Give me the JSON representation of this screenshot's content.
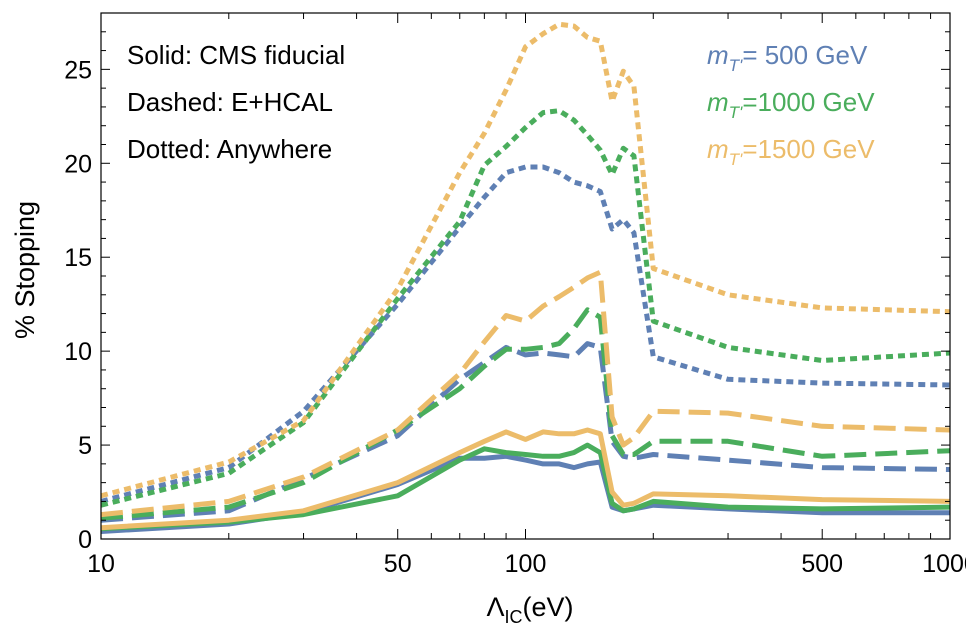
{
  "chart_data": {
    "type": "line",
    "xscale": "log",
    "xlim": [
      10,
      1000
    ],
    "ylim": [
      0,
      28
    ],
    "xticks": [
      10,
      50,
      100,
      500,
      1000
    ],
    "yticks": [
      0,
      5,
      10,
      15,
      20,
      25
    ],
    "xlabel": "Λ",
    "xlabel_sub": "IC",
    "xlabel_unit": "(eV)",
    "ylabel": "% Stopping",
    "grid": false,
    "notes": [
      "Solid: CMS fiducial",
      "Dashed: E+HCAL",
      "Dotted: Anywhere"
    ],
    "legend_placement": "top-right",
    "legend": [
      {
        "prefix": "m",
        "sub": "T'",
        "text": "=  500 GeV",
        "color": "#5f80b4"
      },
      {
        "prefix": "m",
        "sub": "T'",
        "text": "=1000 GeV",
        "color": "#4aad5c"
      },
      {
        "prefix": "m",
        "sub": "T'",
        "text": "=1500 GeV",
        "color": "#ecbc6a"
      }
    ],
    "series": [
      {
        "mass": "500",
        "style": "solid",
        "color": "#5f80b4",
        "x": [
          10,
          20,
          30,
          50,
          70,
          80,
          90,
          100,
          110,
          120,
          130,
          140,
          150,
          160,
          170,
          180,
          200,
          300,
          500,
          1000
        ],
        "y": [
          0.4,
          0.8,
          1.4,
          2.9,
          4.3,
          4.3,
          4.4,
          4.2,
          4.0,
          4.0,
          3.8,
          4.0,
          4.1,
          1.7,
          1.5,
          1.6,
          1.8,
          1.6,
          1.4,
          1.4
        ]
      },
      {
        "mass": "1000",
        "style": "solid",
        "color": "#4aad5c",
        "x": [
          10,
          20,
          30,
          50,
          70,
          80,
          90,
          100,
          110,
          120,
          130,
          140,
          150,
          160,
          170,
          180,
          200,
          300,
          500,
          1000
        ],
        "y": [
          0.55,
          0.9,
          1.3,
          2.3,
          4.2,
          4.8,
          4.6,
          4.5,
          4.4,
          4.4,
          4.6,
          5.0,
          4.6,
          1.9,
          1.5,
          1.6,
          2.0,
          1.7,
          1.6,
          1.7
        ]
      },
      {
        "mass": "1500",
        "style": "solid",
        "color": "#ecbc6a",
        "x": [
          10,
          20,
          30,
          50,
          70,
          80,
          90,
          100,
          110,
          120,
          130,
          140,
          150,
          160,
          170,
          180,
          200,
          300,
          500,
          1000
        ],
        "y": [
          0.6,
          1.0,
          1.5,
          3.0,
          4.6,
          5.2,
          5.7,
          5.3,
          5.7,
          5.6,
          5.6,
          5.8,
          5.6,
          2.5,
          1.8,
          1.9,
          2.4,
          2.3,
          2.1,
          2.0
        ]
      },
      {
        "mass": "500",
        "style": "dashed",
        "color": "#5f80b4",
        "x": [
          10,
          20,
          30,
          50,
          70,
          80,
          90,
          100,
          110,
          120,
          130,
          140,
          150,
          160,
          170,
          180,
          200,
          300,
          500,
          1000
        ],
        "y": [
          1.0,
          1.5,
          3.2,
          5.5,
          8.5,
          9.4,
          10.2,
          9.8,
          9.9,
          9.8,
          9.7,
          10.4,
          10.2,
          5.2,
          4.4,
          4.3,
          4.5,
          4.2,
          3.8,
          3.7
        ]
      },
      {
        "mass": "1000",
        "style": "dashed",
        "color": "#4aad5c",
        "x": [
          10,
          20,
          30,
          50,
          70,
          80,
          90,
          100,
          110,
          120,
          130,
          140,
          150,
          160,
          170,
          180,
          200,
          300,
          500,
          1000
        ],
        "y": [
          1.1,
          1.7,
          3.0,
          5.8,
          8.0,
          9.2,
          10.1,
          10.1,
          10.2,
          10.4,
          11.2,
          12.2,
          11.8,
          5.5,
          4.5,
          4.5,
          5.2,
          5.2,
          4.4,
          4.7
        ]
      },
      {
        "mass": "1500",
        "style": "dashed",
        "color": "#ecbc6a",
        "x": [
          10,
          20,
          30,
          50,
          70,
          80,
          90,
          100,
          110,
          120,
          130,
          140,
          150,
          160,
          170,
          180,
          200,
          300,
          500,
          1000
        ],
        "y": [
          1.3,
          2.0,
          3.3,
          5.8,
          8.8,
          10.5,
          11.9,
          11.6,
          12.4,
          12.9,
          13.4,
          13.9,
          14.2,
          6.5,
          5.0,
          5.4,
          6.8,
          6.7,
          6.0,
          5.8
        ]
      },
      {
        "mass": "500",
        "style": "dotted",
        "color": "#5f80b4",
        "x": [
          10,
          20,
          30,
          50,
          70,
          80,
          90,
          100,
          110,
          120,
          130,
          140,
          150,
          160,
          170,
          180,
          200,
          300,
          500,
          1000
        ],
        "y": [
          2.0,
          3.8,
          6.8,
          12.5,
          16.6,
          18.2,
          19.5,
          19.8,
          19.8,
          19.5,
          19.0,
          18.8,
          18.5,
          16.5,
          17.0,
          16.3,
          9.7,
          8.5,
          8.3,
          8.2
        ]
      },
      {
        "mass": "1000",
        "style": "dotted",
        "color": "#4aad5c",
        "x": [
          10,
          20,
          30,
          50,
          70,
          80,
          90,
          100,
          110,
          120,
          130,
          140,
          150,
          160,
          170,
          180,
          200,
          300,
          500,
          1000
        ],
        "y": [
          1.8,
          3.5,
          6.2,
          12.8,
          16.9,
          19.9,
          20.9,
          21.9,
          22.7,
          22.8,
          22.3,
          21.5,
          20.7,
          19.4,
          20.8,
          20.4,
          11.6,
          10.2,
          9.5,
          9.9
        ]
      },
      {
        "mass": "1500",
        "style": "dotted",
        "color": "#ecbc6a",
        "x": [
          10,
          20,
          30,
          50,
          70,
          80,
          90,
          100,
          110,
          120,
          130,
          140,
          150,
          160,
          170,
          180,
          200,
          300,
          500,
          1000
        ],
        "y": [
          2.3,
          4.1,
          6.3,
          13.3,
          19.5,
          21.6,
          23.9,
          26.2,
          26.9,
          27.4,
          27.3,
          26.7,
          26.5,
          23.3,
          24.9,
          24.1,
          14.4,
          13.0,
          12.3,
          12.1
        ]
      }
    ]
  }
}
